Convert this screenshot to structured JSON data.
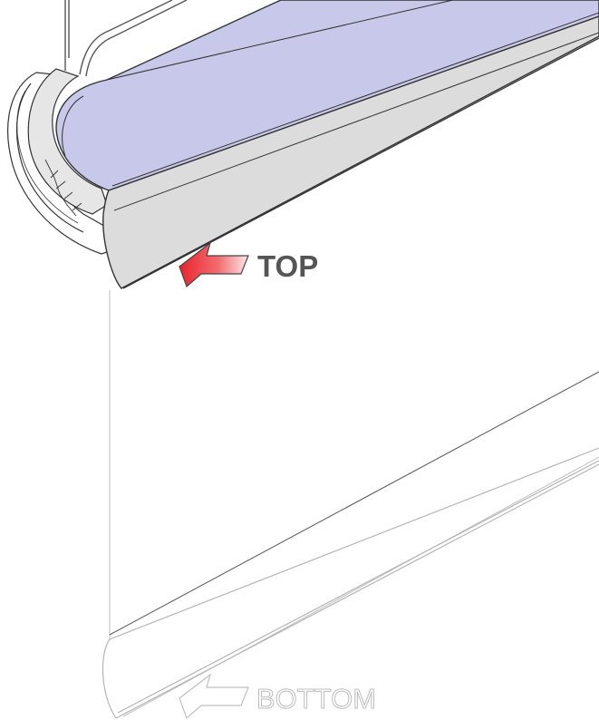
{
  "labels": {
    "top": "TOP",
    "bottom": "BOTTOM"
  },
  "colors": {
    "fabric_roll": "#c8c8ea",
    "cassette": "#dcdcdc",
    "outline": "#333333",
    "top_label": "#555555",
    "top_arrow": "#e8242c",
    "ghost": "#c8c8c8",
    "background": "#ffffff"
  },
  "icons": {
    "top_arrow": "arrow-left-icon",
    "bottom_arrow": "arrow-left-outline-icon"
  }
}
